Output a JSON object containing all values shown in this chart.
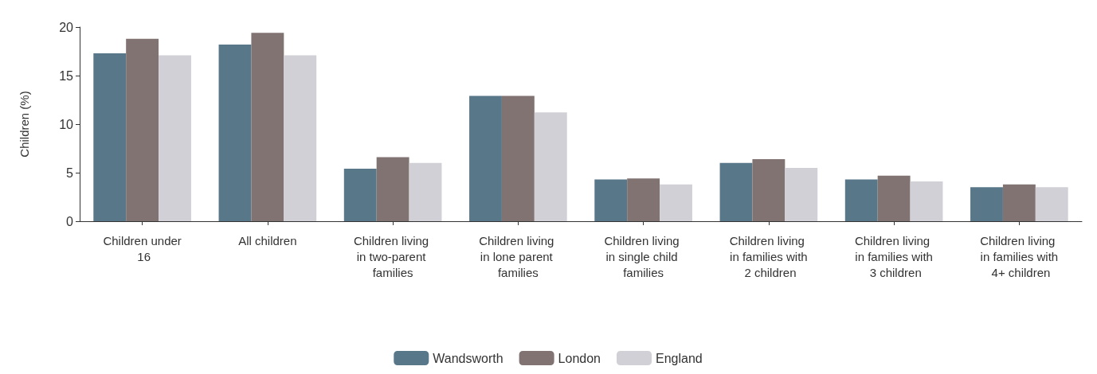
{
  "chart_data": {
    "type": "bar",
    "ylabel": "Children (%)",
    "categories": [
      "Children under 16",
      "All children",
      "Children living in two-parent families",
      "Children living in lone parent families",
      "Children living in single child families",
      "Children living in families with 2 children",
      "Children living in families with 3 children",
      "Children living in families with 4+ children"
    ],
    "series": [
      {
        "name": "Wandsworth",
        "color": "#587789",
        "values": [
          17.3,
          18.2,
          5.4,
          12.9,
          4.3,
          6.0,
          4.3,
          3.5
        ]
      },
      {
        "name": "London",
        "color": "#817372",
        "values": [
          18.8,
          19.4,
          6.6,
          12.9,
          4.4,
          6.4,
          4.7,
          3.8
        ]
      },
      {
        "name": "England",
        "color": "#d1d0d6",
        "values": [
          17.1,
          17.1,
          6.0,
          11.2,
          3.8,
          5.5,
          4.1,
          3.5
        ]
      }
    ],
    "ylim": [
      0,
      20
    ],
    "yticks": [
      0,
      5,
      10,
      15,
      20
    ],
    "grid": false,
    "legend": "bottom"
  }
}
